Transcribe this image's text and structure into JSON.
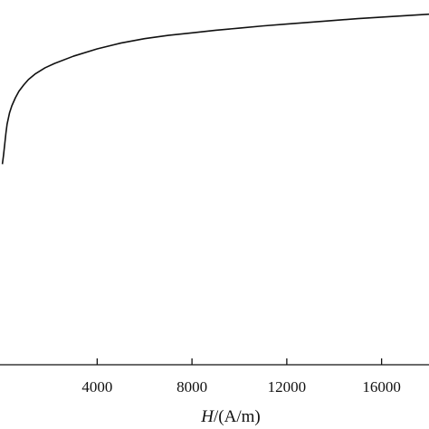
{
  "chart_data": {
    "type": "line",
    "title": "",
    "xlabel_italic": "H",
    "xlabel_rest": "/(A/m)",
    "ylabel": "",
    "xlim": [
      -100,
      18000
    ],
    "ylim": [
      0,
      1
    ],
    "xticks": [
      4000,
      8000,
      12000,
      16000
    ],
    "xtick_labels": [
      "4000",
      "8000",
      "12000",
      "16000"
    ],
    "grid": false,
    "series": [
      {
        "x": [
          0,
          50,
          100,
          150,
          200,
          300,
          400,
          550,
          700,
          900,
          1100,
          1400,
          1800,
          2200,
          3000,
          4000,
          5000,
          6000,
          7000,
          8000,
          9000,
          10000,
          11000,
          12000,
          13000,
          14000,
          15000,
          16000,
          17000,
          18000
        ],
        "y": [
          0.55,
          0.575,
          0.605,
          0.635,
          0.66,
          0.69,
          0.71,
          0.732,
          0.75,
          0.767,
          0.782,
          0.798,
          0.814,
          0.826,
          0.846,
          0.866,
          0.882,
          0.894,
          0.903,
          0.91,
          0.917,
          0.923,
          0.929,
          0.934,
          0.939,
          0.944,
          0.949,
          0.953,
          0.957,
          0.961
        ],
        "color": "#111111"
      }
    ]
  }
}
